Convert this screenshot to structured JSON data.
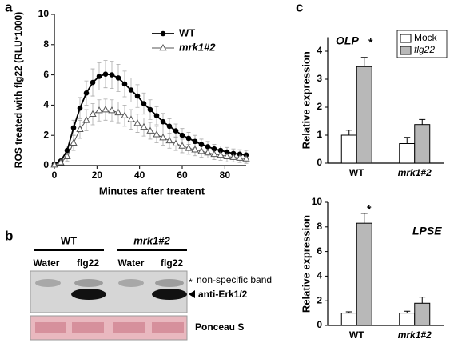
{
  "panel_labels": [
    "a",
    "b",
    "c"
  ],
  "chart_data": [
    {
      "type": "line",
      "xlabel": "Minutes after treatent",
      "ylabel": "ROS treated with flg22 (RLU*1000)",
      "x": [
        0,
        3,
        6,
        9,
        12,
        15,
        18,
        21,
        24,
        27,
        30,
        33,
        36,
        39,
        42,
        45,
        48,
        51,
        54,
        57,
        60,
        63,
        66,
        69,
        72,
        75,
        78,
        81,
        84,
        87,
        90
      ],
      "xlim": [
        0,
        90
      ],
      "xticks": [
        0,
        20,
        40,
        60,
        80
      ],
      "ylim": [
        0,
        10
      ],
      "yticks": [
        0,
        2,
        4,
        6,
        8,
        10
      ],
      "series": [
        {
          "name": "WT",
          "color": "#000000",
          "marker": "circle",
          "values": [
            0.1,
            0.3,
            1.0,
            2.5,
            3.8,
            4.8,
            5.5,
            5.9,
            6.05,
            6.0,
            5.8,
            5.4,
            5.0,
            4.6,
            4.1,
            3.7,
            3.3,
            2.9,
            2.6,
            2.3,
            2.0,
            1.8,
            1.6,
            1.4,
            1.25,
            1.1,
            1.0,
            0.9,
            0.8,
            0.75,
            0.7
          ],
          "errors": [
            0.05,
            0.1,
            0.3,
            0.5,
            0.7,
            0.8,
            0.9,
            0.9,
            0.9,
            0.9,
            0.9,
            0.85,
            0.8,
            0.75,
            0.7,
            0.65,
            0.6,
            0.55,
            0.5,
            0.45,
            0.45,
            0.4,
            0.4,
            0.35,
            0.35,
            0.3,
            0.3,
            0.3,
            0.3,
            0.3,
            0.3
          ]
        },
        {
          "name": "mrk1#2",
          "color": "#555555",
          "marker": "triangle",
          "values": [
            0.05,
            0.2,
            0.6,
            1.5,
            2.4,
            3.0,
            3.4,
            3.65,
            3.7,
            3.65,
            3.5,
            3.3,
            3.05,
            2.8,
            2.55,
            2.3,
            2.05,
            1.85,
            1.65,
            1.45,
            1.3,
            1.15,
            1.05,
            0.95,
            0.85,
            0.75,
            0.7,
            0.6,
            0.55,
            0.5,
            0.45
          ],
          "errors": [
            0.05,
            0.1,
            0.3,
            0.5,
            0.6,
            0.7,
            0.7,
            0.7,
            0.7,
            0.7,
            0.7,
            0.7,
            0.65,
            0.6,
            0.6,
            0.55,
            0.55,
            0.5,
            0.5,
            0.45,
            0.45,
            0.4,
            0.4,
            0.4,
            0.35,
            0.35,
            0.35,
            0.35,
            0.3,
            0.3,
            0.3
          ]
        }
      ]
    },
    {
      "type": "bar",
      "ylabel": "Relative expression",
      "categories": [
        "WT",
        "mrk1#2"
      ],
      "ylim": [
        0,
        4.5
      ],
      "yticks": [
        0,
        1,
        2,
        3,
        4
      ],
      "legend": "upper right",
      "annotations": [
        "OLP",
        "*"
      ],
      "series": [
        {
          "name": "Mock",
          "color": "#ffffff",
          "values": [
            1.0,
            0.7
          ],
          "errors": [
            0.18,
            0.22
          ]
        },
        {
          "name": "flg22",
          "color": "#b8b8b8",
          "values": [
            3.45,
            1.38
          ],
          "errors": [
            0.33,
            0.18
          ]
        }
      ]
    },
    {
      "type": "bar",
      "ylabel": "Relative expression",
      "categories": [
        "WT",
        "mrk1#2"
      ],
      "ylim": [
        0,
        10
      ],
      "yticks": [
        0,
        2,
        4,
        6,
        8,
        10
      ],
      "annotations": [
        "*",
        "LPSE"
      ],
      "series": [
        {
          "color": "#ffffff",
          "values": [
            1.0,
            1.0
          ],
          "errors": [
            0.1,
            0.15
          ]
        },
        {
          "color": "#b8b8b8",
          "values": [
            8.3,
            1.8
          ],
          "errors": [
            0.8,
            0.5
          ]
        }
      ]
    }
  ],
  "blot": {
    "groups": [
      "WT",
      "mrk1#2"
    ],
    "lanes": [
      "Water",
      "flg22",
      "Water",
      "flg22"
    ],
    "star": "*",
    "nonspecific": "non-specific band",
    "antibody": "anti-Erk1/2",
    "loading": "Ponceau S"
  }
}
